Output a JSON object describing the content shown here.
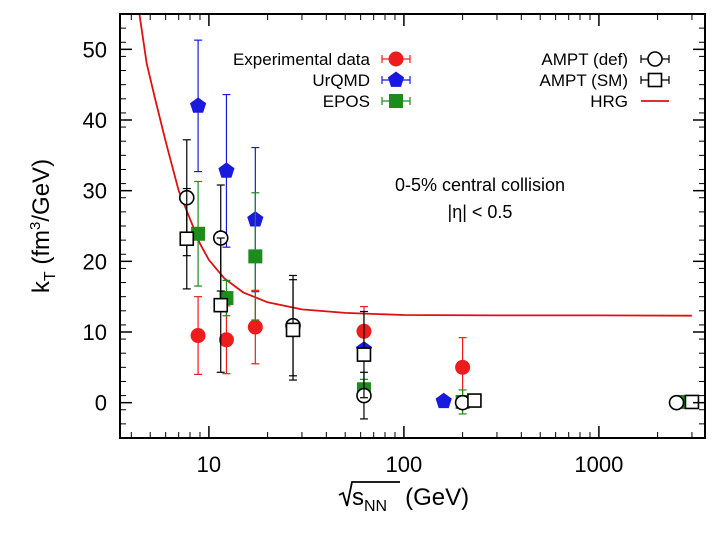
{
  "chart_data": {
    "type": "scatter",
    "xscale": "log",
    "xlim": [
      3.5,
      3500
    ],
    "ylim": [
      -5,
      55
    ],
    "grid": false,
    "legend_position": "top",
    "xlabel": "√sNN  (GeV)",
    "ylabel": "kT (fm3/GeV)",
    "xticks": [
      {
        "value": 10,
        "label": "10"
      },
      {
        "value": 100,
        "label": "100"
      },
      {
        "value": 1000,
        "label": "1000"
      }
    ],
    "yticks": [
      {
        "value": 0,
        "label": "0"
      },
      {
        "value": 10,
        "label": "10"
      },
      {
        "value": 20,
        "label": "20"
      },
      {
        "value": 30,
        "label": "30"
      },
      {
        "value": 40,
        "label": "40"
      },
      {
        "value": 50,
        "label": "50"
      }
    ],
    "annotations": [
      "0-5% central collision",
      "|η| < 0.5"
    ],
    "series": [
      {
        "name": "Experimental data",
        "marker": "filled-circle",
        "color": "#ee1c1c",
        "points": [
          {
            "x": 8.8,
            "y": 9.5,
            "err": 5.5
          },
          {
            "x": 12.3,
            "y": 8.9,
            "err": 4.8
          },
          {
            "x": 17.3,
            "y": 10.7,
            "err": 5.2
          },
          {
            "x": 62.4,
            "y": 10.1,
            "err": 3.5
          },
          {
            "x": 200,
            "y": 5.0,
            "err": 4.2
          }
        ]
      },
      {
        "name": "UrQMD",
        "marker": "filled-pentagon",
        "color": "#1a1adc",
        "points": [
          {
            "x": 8.8,
            "y": 42.0,
            "err": 9.3
          },
          {
            "x": 12.3,
            "y": 32.8,
            "err": 10.8
          },
          {
            "x": 17.3,
            "y": 25.9,
            "err": 10.2
          },
          {
            "x": 62.4,
            "y": 7.5,
            "err": 0.7
          },
          {
            "x": 160,
            "y": 0.2,
            "err": 0.2
          }
        ]
      },
      {
        "name": "EPOS",
        "marker": "filled-square",
        "color": "#1c8c1c",
        "points": [
          {
            "x": 8.8,
            "y": 23.9,
            "err": 7.4
          },
          {
            "x": 12.3,
            "y": 14.8,
            "err": 2.5
          },
          {
            "x": 17.3,
            "y": 20.7,
            "err": 9.0
          },
          {
            "x": 62.4,
            "y": 1.9,
            "err": 1.4
          },
          {
            "x": 200,
            "y": 0.1,
            "err": 1.7
          },
          {
            "x": 2760,
            "y": 0.1,
            "err": 0.2
          }
        ]
      },
      {
        "name": "AMPT (def)",
        "marker": "open-circle",
        "color": "#000000",
        "points": [
          {
            "x": 7.7,
            "y": 29.0,
            "err": 8.2
          },
          {
            "x": 11.5,
            "y": 23.3,
            "err": 7.5
          },
          {
            "x": 27,
            "y": 10.9,
            "err": 7.1
          },
          {
            "x": 62.4,
            "y": 1.0,
            "err": 3.3
          },
          {
            "x": 200,
            "y": 0.0,
            "err": 0.2
          },
          {
            "x": 2500,
            "y": 0.0,
            "err": 0.2
          }
        ]
      },
      {
        "name": "AMPT (SM)",
        "marker": "open-square",
        "color": "#000000",
        "points": [
          {
            "x": 7.7,
            "y": 23.2,
            "err": 7.1
          },
          {
            "x": 11.5,
            "y": 13.8,
            "err": 9.5
          },
          {
            "x": 27,
            "y": 10.3,
            "err": 7.1
          },
          {
            "x": 62.4,
            "y": 6.8,
            "err": 6.1
          },
          {
            "x": 230,
            "y": 0.3,
            "err": 0.3
          },
          {
            "x": 3000,
            "y": 0.1,
            "err": 0.2
          }
        ]
      },
      {
        "name": "HRG",
        "marker": "line",
        "color": "#dd1111",
        "curve": [
          {
            "x": 4.4,
            "y": 55
          },
          {
            "x": 4.8,
            "y": 48
          },
          {
            "x": 5.3,
            "y": 43
          },
          {
            "x": 6,
            "y": 37
          },
          {
            "x": 7,
            "y": 30
          },
          {
            "x": 8,
            "y": 26
          },
          {
            "x": 9,
            "y": 22.5
          },
          {
            "x": 10,
            "y": 20.2
          },
          {
            "x": 12,
            "y": 17.6
          },
          {
            "x": 15,
            "y": 15.6
          },
          {
            "x": 20,
            "y": 14.2
          },
          {
            "x": 30,
            "y": 13.2
          },
          {
            "x": 50,
            "y": 12.7
          },
          {
            "x": 100,
            "y": 12.4
          },
          {
            "x": 300,
            "y": 12.35
          },
          {
            "x": 1000,
            "y": 12.35
          },
          {
            "x": 3000,
            "y": 12.3
          }
        ]
      }
    ]
  }
}
